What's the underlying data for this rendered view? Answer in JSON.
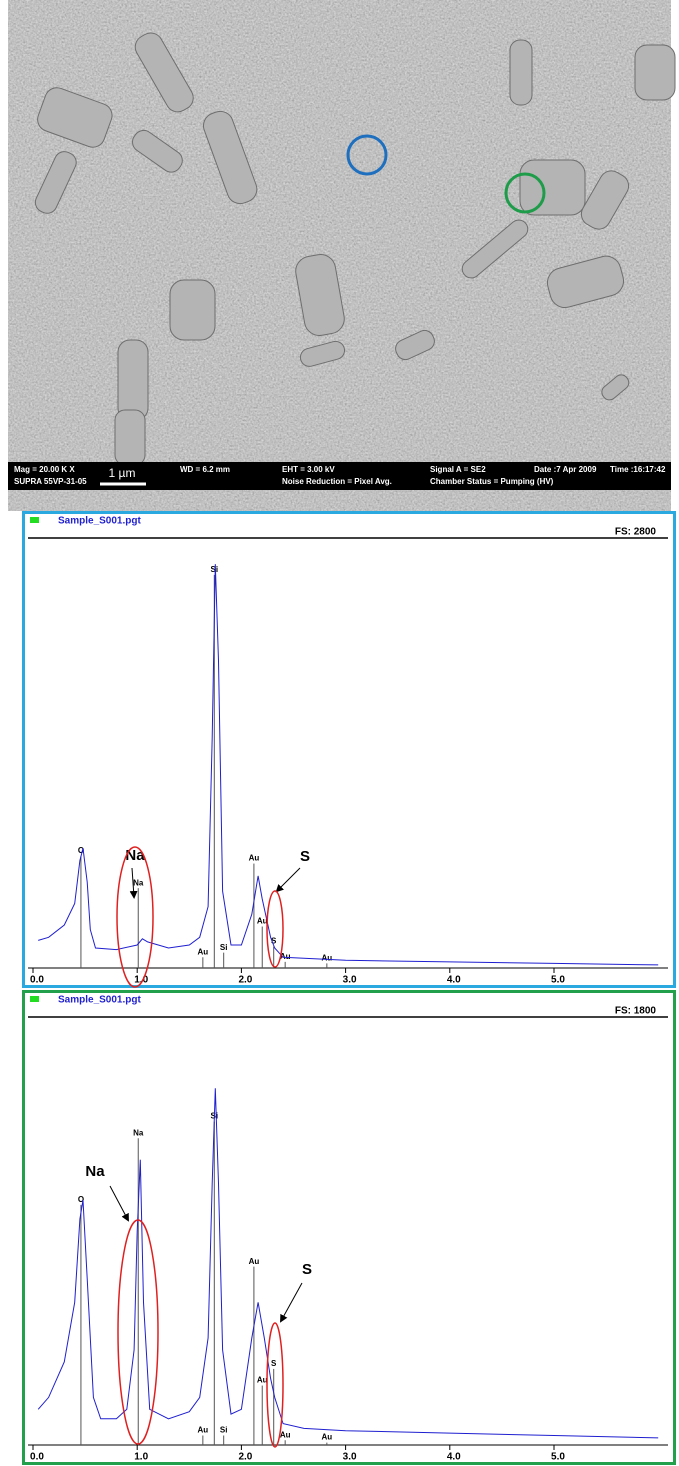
{
  "sem_image": {
    "info": [
      "Mag = 20.00 K X",
      "SUPRA 55VP-31-05",
      "WD = 6.2 mm",
      "EHT = 3.00 kV",
      "Noise Reduction = Pixel Avg.",
      "Signal A = SE2",
      "Chamber Status = Pumping (HV)",
      "Date :7 Apr 2009",
      "Time :16:17:42"
    ],
    "scale_bar": "1 µm"
  },
  "chart_data": [
    {
      "type": "line",
      "title": "Sample_S001.pgt",
      "full_scale_label": "FS: 2800",
      "border_color": "#2aa9e0",
      "xlim": [
        0,
        6.1
      ],
      "ylim": [
        0,
        2800
      ],
      "xticks": [
        {
          "value": 0,
          "label": "0.0"
        },
        {
          "value": 1,
          "label": "1.0"
        },
        {
          "value": 2,
          "label": "2.0"
        },
        {
          "value": 3,
          "label": "3.0"
        },
        {
          "value": 4,
          "label": "4.0"
        },
        {
          "value": 5,
          "label": "5.0"
        }
      ],
      "series": [
        {
          "color": "#1f1fd0",
          "x": [
            0.05,
            0.15,
            0.3,
            0.4,
            0.45,
            0.48,
            0.52,
            0.55,
            0.6,
            0.8,
            1.0,
            1.05,
            1.1,
            1.3,
            1.5,
            1.6,
            1.68,
            1.72,
            1.75,
            1.78,
            1.82,
            1.9,
            2.0,
            2.1,
            2.16,
            2.2,
            2.28,
            2.32,
            2.4,
            3.0,
            4.0,
            5.0,
            6.0
          ],
          "values": [
            180,
            200,
            280,
            420,
            700,
            780,
            560,
            250,
            130,
            120,
            150,
            190,
            170,
            130,
            150,
            200,
            400,
            1500,
            2630,
            2000,
            500,
            150,
            150,
            350,
            600,
            450,
            200,
            130,
            70,
            50,
            40,
            30,
            20
          ]
        }
      ],
      "markers": [
        {
          "label": "O",
          "x": 0.46,
          "height": 730
        },
        {
          "label": "Na",
          "x": 1.01,
          "height": 520
        },
        {
          "label": "Au",
          "x": 1.63,
          "height": 70
        },
        {
          "label": "Si",
          "x": 1.74,
          "height": 2560
        },
        {
          "label": "Si",
          "x": 1.83,
          "height": 100
        },
        {
          "label": "Au",
          "x": 2.12,
          "height": 680
        },
        {
          "label": "Au",
          "x": 2.2,
          "height": 270
        },
        {
          "label": "S",
          "x": 2.31,
          "height": 140
        },
        {
          "label": "Au",
          "x": 2.42,
          "height": 40
        },
        {
          "label": "Au",
          "x": 2.82,
          "height": 30
        }
      ],
      "annotations": [
        "Na",
        "S"
      ]
    },
    {
      "type": "line",
      "title": "Sample_S001.pgt",
      "full_scale_label": "FS: 1800",
      "border_color": "#22a04b",
      "xlim": [
        0,
        6.1
      ],
      "ylim": [
        0,
        1800
      ],
      "xticks": [
        {
          "value": 0,
          "label": "0.0"
        },
        {
          "value": 1,
          "label": "1.0"
        },
        {
          "value": 2,
          "label": "2.0"
        },
        {
          "value": 3,
          "label": "3.0"
        },
        {
          "value": 4,
          "label": "4.0"
        },
        {
          "value": 5,
          "label": "5.0"
        }
      ],
      "series": [
        {
          "color": "#1f1fd0",
          "x": [
            0.05,
            0.15,
            0.3,
            0.4,
            0.45,
            0.48,
            0.52,
            0.58,
            0.65,
            0.8,
            0.9,
            0.97,
            1.0,
            1.03,
            1.06,
            1.12,
            1.3,
            1.5,
            1.6,
            1.68,
            1.72,
            1.75,
            1.78,
            1.82,
            1.9,
            2.0,
            2.1,
            2.16,
            2.22,
            2.28,
            2.32,
            2.4,
            2.6,
            3.0,
            4.0,
            5.0,
            6.0
          ],
          "values": [
            150,
            200,
            350,
            600,
            950,
            1030,
            700,
            200,
            110,
            110,
            150,
            400,
            900,
            1200,
            600,
            150,
            110,
            140,
            200,
            450,
            1100,
            1500,
            1100,
            400,
            130,
            150,
            450,
            600,
            450,
            280,
            200,
            90,
            70,
            60,
            50,
            40,
            30
          ]
        }
      ],
      "markers": [
        {
          "label": "O",
          "x": 0.46,
          "height": 1010
        },
        {
          "label": "Na",
          "x": 1.01,
          "height": 1290
        },
        {
          "label": "Au",
          "x": 1.63,
          "height": 40
        },
        {
          "label": "Si",
          "x": 1.74,
          "height": 1360
        },
        {
          "label": "Si",
          "x": 1.83,
          "height": 40
        },
        {
          "label": "Au",
          "x": 2.12,
          "height": 750
        },
        {
          "label": "Au",
          "x": 2.2,
          "height": 250
        },
        {
          "label": "S",
          "x": 2.31,
          "height": 320
        },
        {
          "label": "Au",
          "x": 2.42,
          "height": 20
        },
        {
          "label": "Au",
          "x": 2.82,
          "height": 10
        }
      ],
      "annotations": [
        "Na",
        "S"
      ]
    }
  ]
}
